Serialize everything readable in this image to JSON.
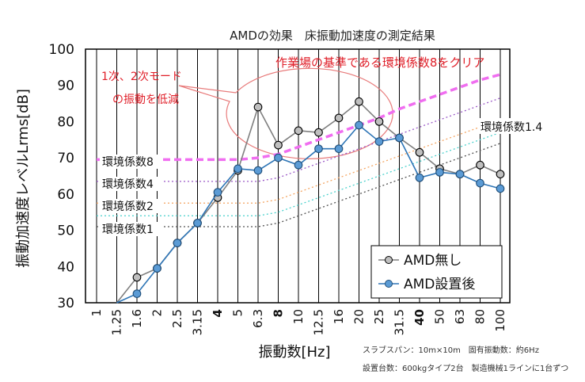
{
  "chart_data": {
    "type": "line",
    "title": "AMDの効果　床振動加速度の測定結果",
    "xlabel": "振動数[Hz]",
    "ylabel": "振動加速度レベルLrms[dB]",
    "ylim": [
      30,
      100
    ],
    "yticks": [
      30,
      40,
      50,
      60,
      70,
      80,
      90,
      100
    ],
    "categories": [
      "1",
      "1.25",
      "1.6",
      "2",
      "2.5",
      "3.15",
      "4",
      "5",
      "6.3",
      "8",
      "10",
      "12.5",
      "16",
      "20",
      "25",
      "31.5",
      "40",
      "50",
      "63",
      "80",
      "100"
    ],
    "bold_categories": [
      "4",
      "8",
      "40"
    ],
    "series": [
      {
        "name": "AMD無し",
        "color": "#7f7f7f",
        "marker_fill": "#bfbfbf",
        "values": [
          null,
          null,
          37,
          39.5,
          46.5,
          52,
          59,
          66.5,
          84,
          73.5,
          77.5,
          77,
          81,
          85.5,
          80,
          75.5,
          71.5,
          67,
          65.5,
          68,
          65.5
        ]
      },
      {
        "name": "AMD設置後",
        "color": "#2e75b6",
        "marker_fill": "#5b9bd5",
        "values": [
          null,
          null,
          32.5,
          39.5,
          46.5,
          52,
          60.5,
          67,
          66.5,
          70,
          68,
          72.5,
          72.5,
          79,
          74.5,
          75.5,
          64.5,
          66,
          65.5,
          63,
          61.5
        ]
      }
    ],
    "reference_lines": [
      {
        "label": "環境係数8",
        "color": "#f06ef0",
        "values": [
          69.5,
          69.5,
          69.5,
          69.5,
          69.5,
          69.5,
          69.5,
          69.5,
          70,
          71,
          73,
          75,
          77,
          79,
          81,
          83.5,
          85.5,
          87.5,
          89.5,
          91.5,
          93
        ]
      },
      {
        "label": "環境係数4",
        "color": "#9b59c7",
        "values": [
          63.5,
          63.5,
          63.5,
          63.5,
          63.5,
          63.5,
          63.5,
          63.5,
          63.5,
          64.5,
          66.5,
          68.5,
          70.5,
          72.5,
          74.5,
          76.5,
          78.5,
          80.5,
          82.5,
          84.5,
          86.5
        ]
      },
      {
        "label": "環境係数2",
        "color": "#f4a460",
        "values": [
          57.5,
          57.5,
          57.5,
          57.5,
          57.5,
          57.5,
          57.5,
          57.5,
          57.5,
          58.5,
          60.5,
          62.5,
          64.5,
          66.5,
          68.5,
          70.5,
          72.5,
          74.5,
          76.5,
          78.5,
          80.5
        ]
      },
      {
        "label": "",
        "color": "#48d1cc",
        "values": [
          54,
          54,
          54,
          54,
          54,
          54,
          54,
          54,
          54,
          55,
          57,
          59,
          61,
          63,
          65,
          67,
          69,
          71,
          73,
          75,
          77
        ]
      },
      {
        "label": "環境係数1",
        "color": "#555555",
        "values": [
          51,
          51,
          51,
          51,
          51,
          51,
          51,
          51,
          51,
          52,
          54,
          56,
          58,
          60,
          62,
          64,
          66,
          68,
          70,
          72,
          74
        ]
      }
    ],
    "legend_position": "bottom-right",
    "grid": "x"
  },
  "labels": {
    "env14": "環境係数1.4",
    "env8": "環境係数8",
    "env4": "環境係数4",
    "env2": "環境係数2",
    "env1": "環境係数1",
    "pink_note": "作業場の基準である環境係数8をクリア",
    "red_note_1": "1次、2次モード",
    "red_note_2": "の振動を低減",
    "info_1": "スラブスパン：10m×10m　固有振動数：約6Hz",
    "info_2": "設置台数：600kgタイプ2台　製造機械1ラインに1台ずつ",
    "legend_1": "AMD無し",
    "legend_2": "AMD設置後"
  }
}
